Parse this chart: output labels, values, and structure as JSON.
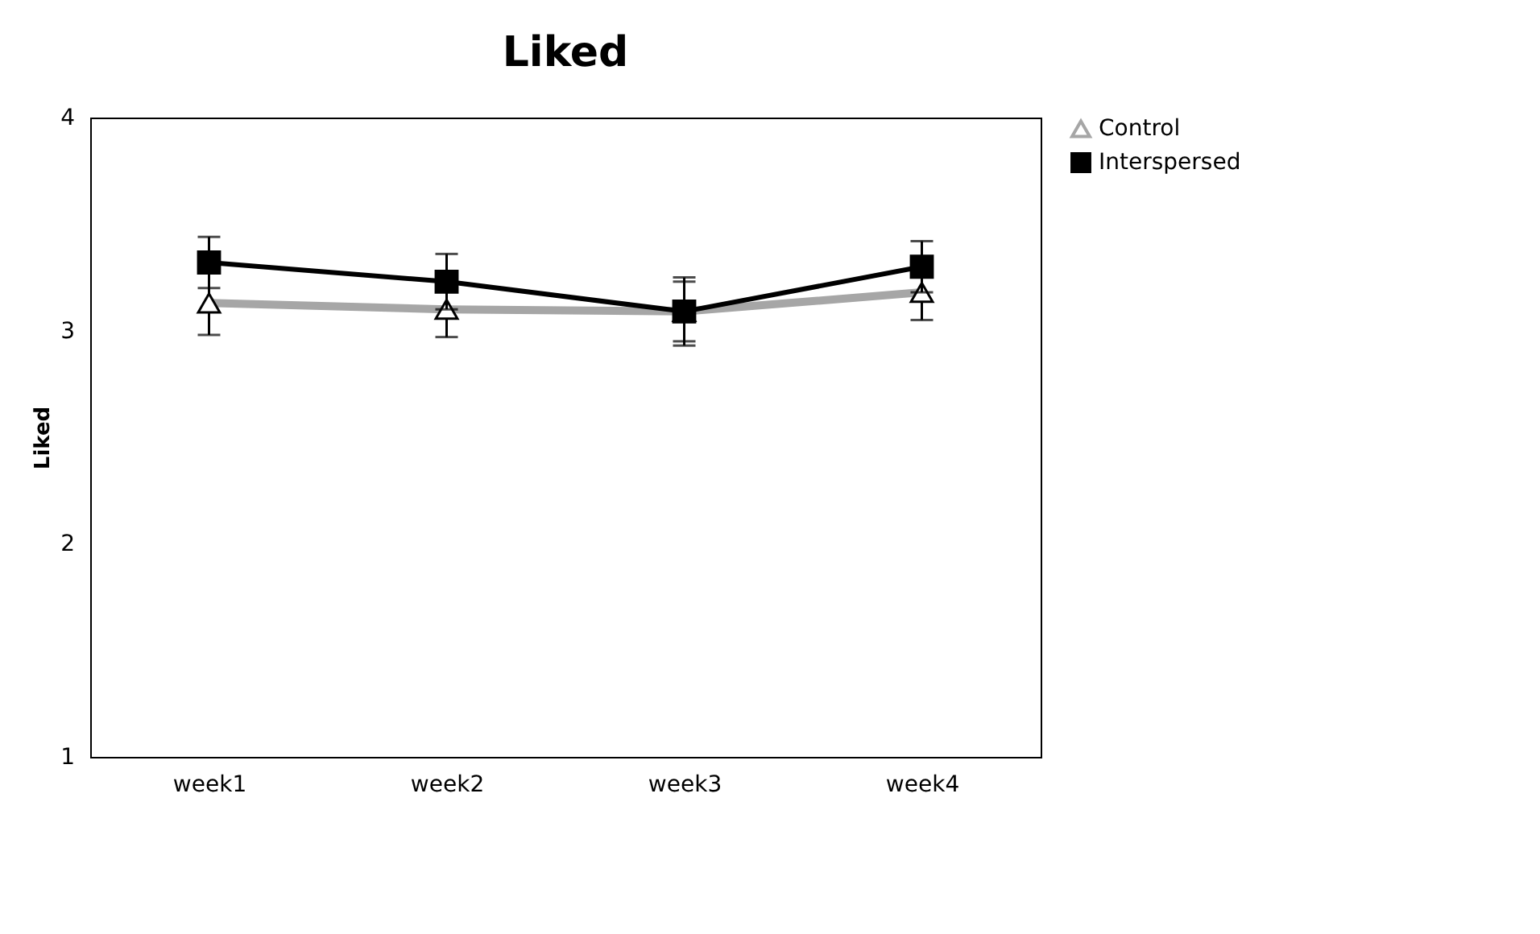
{
  "chart_data": {
    "type": "line",
    "title": "Liked",
    "ylabel": "Liked",
    "categories": [
      "week1",
      "week2",
      "week3",
      "week4"
    ],
    "series": [
      {
        "name": "Control",
        "color": "#a6a6a6",
        "values": [
          3.13,
          3.1,
          3.09,
          3.18
        ],
        "errors": [
          0.15,
          0.13,
          0.14,
          0.13
        ],
        "marker": "triangle"
      },
      {
        "name": "Interspersed",
        "color": "#000000",
        "values": [
          3.32,
          3.23,
          3.09,
          3.3
        ],
        "errors": [
          0.12,
          0.13,
          0.16,
          0.12
        ],
        "marker": "square"
      }
    ],
    "ylim": [
      1,
      4
    ],
    "yticks": [
      1,
      2,
      3,
      4
    ],
    "grid": false,
    "legend": "right"
  }
}
